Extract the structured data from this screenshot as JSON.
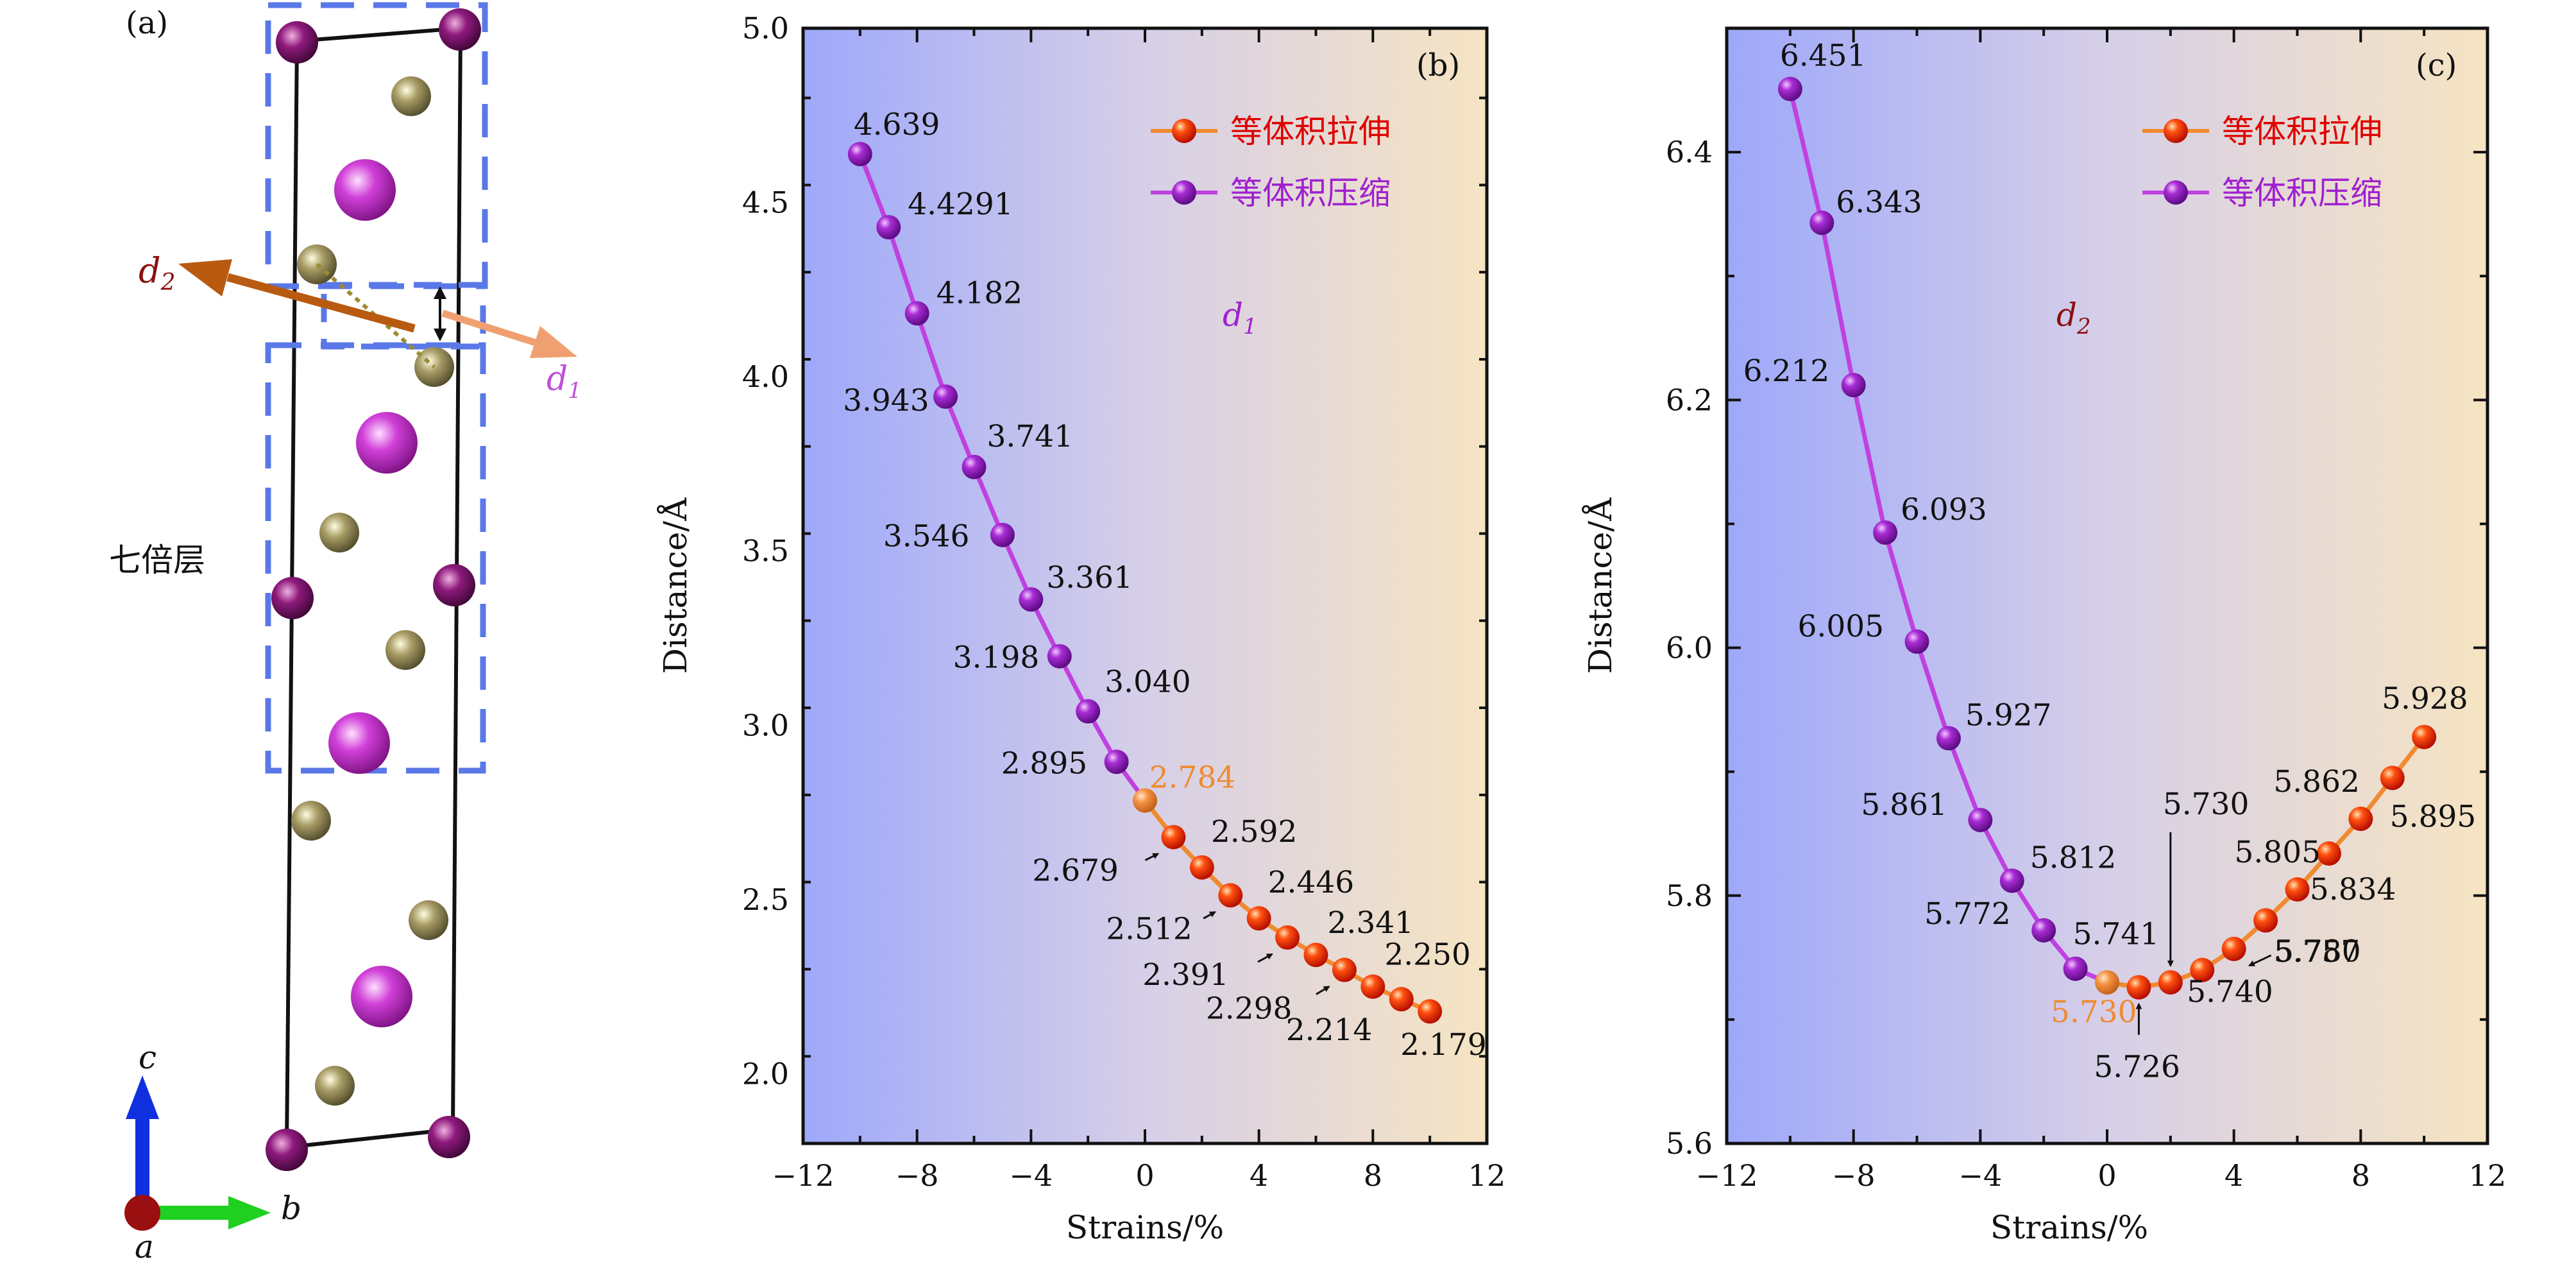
{
  "panel_a": {
    "label": "(a)",
    "layer_label": "七倍层",
    "d2_label": "d",
    "d2_sub": "2",
    "d1_label": "d",
    "d1_sub": "1",
    "axis_c": "c",
    "axis_b": "b",
    "axis_a": "a",
    "colors": {
      "big_atom": "#cc33cc",
      "small_atom": "#9a9060",
      "corner_atom": "#8b1a7a",
      "dashed_box": "#5a78e8",
      "d2_arrow": "#b85a10",
      "d1_arrow": "#f0a070"
    }
  },
  "chart_data": [
    {
      "type": "line",
      "panel": "(b)",
      "xlabel": "Strains/%",
      "ylabel": "Distance/Å",
      "annotation": "d",
      "annotation_sub": "1",
      "xlim": [
        -12,
        12
      ],
      "ylim": [
        1.8,
        5.0
      ],
      "xticks": [
        "−12",
        "−8",
        "−4",
        "0",
        "4",
        "8",
        "12"
      ],
      "yticks": [
        "2.0",
        "2.5",
        "3.0",
        "3.5",
        "4.0",
        "4.5",
        "5.0"
      ],
      "legend": {
        "position": "top-right",
        "entries": [
          "等体积拉伸",
          "等体积压缩"
        ]
      },
      "series": [
        {
          "name": "等体积压缩",
          "color": "#b020c8",
          "x": [
            -10,
            -9,
            -8,
            -7,
            -6,
            -5,
            -4,
            -3,
            -2,
            -1
          ],
          "values": [
            4.639,
            4.4291,
            4.182,
            3.943,
            3.741,
            3.546,
            3.361,
            3.198,
            3.04,
            2.895
          ],
          "labels": [
            "4.639",
            "4.4291",
            "4.182",
            "3.943",
            "3.741",
            "3.546",
            "3.361",
            "3.198",
            "3.040",
            "2.895"
          ]
        },
        {
          "name": "等体积拉伸",
          "color": "#e03010",
          "x": [
            1,
            2,
            3,
            4,
            5,
            6,
            7,
            8,
            9,
            10
          ],
          "values": [
            2.679,
            2.592,
            2.512,
            2.446,
            2.391,
            2.341,
            2.298,
            2.25,
            2.214,
            2.179
          ],
          "labels": [
            "2.679",
            "2.592",
            "2.512",
            "2.446",
            "2.391",
            "2.341",
            "2.298",
            "2.250",
            "2.214",
            "2.179"
          ]
        }
      ],
      "origin_point": {
        "x": 0,
        "value": 2.784,
        "label": "2.784",
        "color": "#f08a30"
      }
    },
    {
      "type": "line",
      "panel": "(c)",
      "xlabel": "Strains/%",
      "ylabel": "Distance/Å",
      "annotation": "d",
      "annotation_sub": "2",
      "xlim": [
        -12,
        12
      ],
      "ylim": [
        5.6,
        6.5
      ],
      "xticks": [
        "−12",
        "−8",
        "−4",
        "0",
        "4",
        "8",
        "12"
      ],
      "yticks": [
        "5.6",
        "5.8",
        "6.0",
        "6.2",
        "6.4"
      ],
      "legend": {
        "position": "top-right",
        "entries": [
          "等体积拉伸",
          "等体积压缩"
        ]
      },
      "series": [
        {
          "name": "等体积压缩",
          "color": "#b020c8",
          "x": [
            -10,
            -9,
            -8,
            -7,
            -6,
            -5,
            -4,
            -3,
            -2,
            -1
          ],
          "values": [
            6.451,
            6.343,
            6.212,
            6.093,
            6.005,
            5.927,
            5.861,
            5.812,
            5.772,
            5.741
          ],
          "labels": [
            "6.451",
            "6.343",
            "6.212",
            "6.093",
            "6.005",
            "5.927",
            "5.861",
            "5.812",
            "5.772",
            "5.741"
          ]
        },
        {
          "name": "等体积拉伸",
          "color": "#e03010",
          "x": [
            1,
            2,
            3,
            4,
            5,
            6,
            7,
            8,
            9,
            10
          ],
          "values": [
            5.726,
            5.73,
            5.74,
            5.757,
            5.78,
            5.805,
            5.834,
            5.862,
            5.895,
            5.928
          ],
          "labels": [
            "5.726",
            "5.730",
            "5.740",
            "5.757",
            "5.780",
            "5.805",
            "5.834",
            "5.862",
            "5.895",
            "5.928"
          ]
        }
      ],
      "origin_point": {
        "x": 0,
        "value": 5.73,
        "label": "5.730",
        "color": "#f08a30"
      }
    }
  ]
}
